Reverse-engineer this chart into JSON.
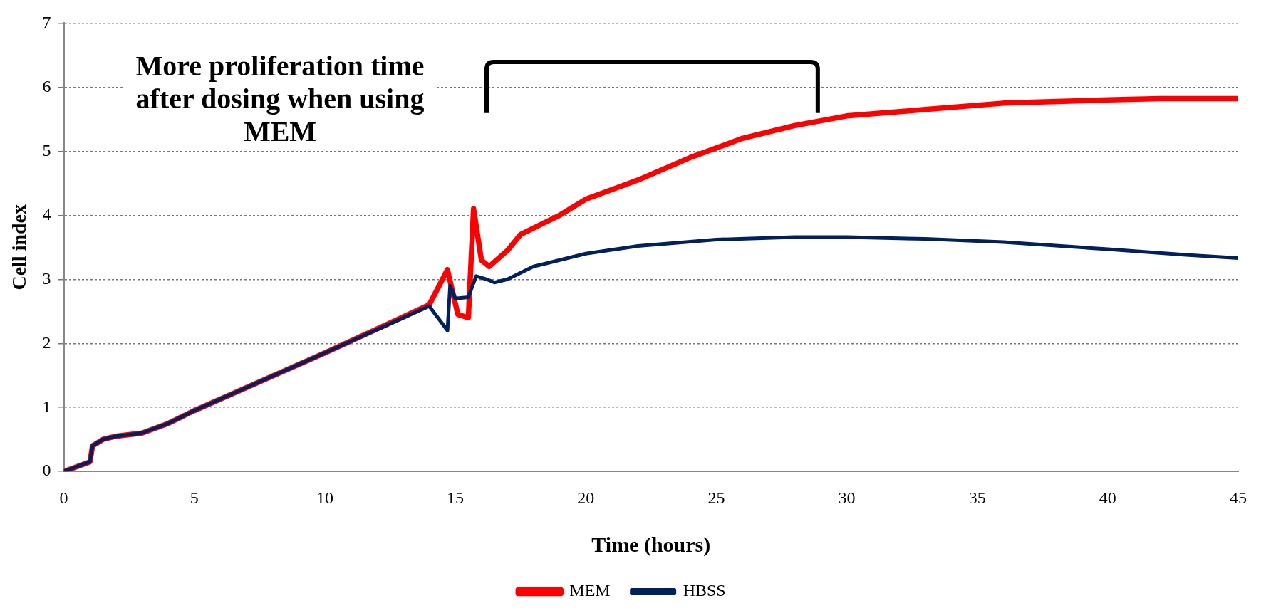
{
  "chart_data": {
    "type": "line",
    "xlabel": "Time (hours)",
    "ylabel": "Cell index",
    "annotations": [
      "More proliferation time after dosing when using MEM"
    ],
    "xlim": [
      0,
      45
    ],
    "xticks": [
      0,
      5,
      10,
      15,
      20,
      25,
      30,
      35,
      40,
      45
    ],
    "ylim": [
      0,
      7
    ],
    "yticks": [
      0,
      1,
      2,
      3,
      4,
      5,
      6,
      7
    ],
    "grid": "y",
    "legend": "bottom",
    "marker": "none",
    "line_style": "solid",
    "series": [
      {
        "name": "MEM",
        "color": "#ff0000",
        "x": [
          0,
          1,
          1.1,
          1.5,
          2,
          3,
          4,
          5,
          10,
          14,
          14.7,
          15.1,
          15.5,
          15.7,
          16,
          16.3,
          17,
          17.5,
          19,
          20,
          22,
          24,
          26,
          28,
          30,
          33,
          36,
          40,
          42,
          45
        ],
        "values": [
          0,
          0.15,
          0.4,
          0.5,
          0.55,
          0.6,
          0.75,
          0.95,
          1.85,
          2.6,
          3.15,
          2.45,
          2.4,
          4.1,
          3.3,
          3.2,
          3.45,
          3.7,
          4.0,
          4.25,
          4.55,
          4.9,
          5.2,
          5.4,
          5.55,
          5.65,
          5.75,
          5.8,
          5.82,
          5.82
        ]
      },
      {
        "name": "HBSS",
        "color": "#002060",
        "x": [
          0,
          1,
          1.1,
          1.5,
          2,
          3,
          4,
          5,
          10,
          14,
          14.7,
          14.8,
          15,
          15.5,
          15.8,
          16.2,
          16.5,
          17,
          18,
          20,
          22,
          25,
          28,
          30,
          33,
          36,
          40,
          43,
          45
        ],
        "values": [
          0,
          0.15,
          0.4,
          0.5,
          0.55,
          0.6,
          0.75,
          0.95,
          1.85,
          2.58,
          2.2,
          2.9,
          2.7,
          2.72,
          3.05,
          3.0,
          2.95,
          3.0,
          3.2,
          3.4,
          3.52,
          3.62,
          3.66,
          3.66,
          3.63,
          3.58,
          3.47,
          3.38,
          3.33
        ]
      }
    ]
  }
}
